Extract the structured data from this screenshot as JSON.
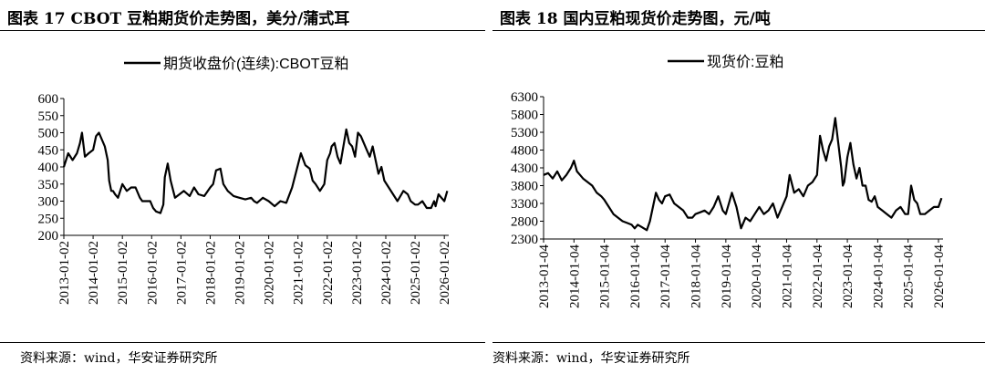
{
  "figures": [
    {
      "title": "图表 17 CBOT 豆粕期货价走势图，美分/蒲式耳",
      "source": "资料来源：wind，华安证券研究所"
    },
    {
      "title": "图表 18 国内豆粕现货价走势图，元/吨",
      "source": "资料来源：wind，华安证券研究所"
    }
  ],
  "chart_data": [
    {
      "type": "line",
      "title": "",
      "xlabel": "",
      "ylabel": "",
      "ylim": [
        200,
        600
      ],
      "yticks": [
        "200",
        "250",
        "300",
        "350",
        "400",
        "450",
        "500",
        "550",
        "600"
      ],
      "xticks": [
        "2013-01-02",
        "2014-01-02",
        "2015-01-02",
        "2016-01-02",
        "2017-01-02",
        "2018-01-02",
        "2019-01-02",
        "2020-01-02",
        "2021-01-02",
        "2022-01-02",
        "2023-01-02",
        "2024-01-02",
        "2025-01-02",
        "2026-01-02"
      ],
      "xrange": [
        2013.0,
        2026.15
      ],
      "legend_position": "top-center",
      "grid": false,
      "series": [
        {
          "name": "期货收盘价(连续):CBOT豆粕",
          "color": "#000000",
          "x": [
            2013.0,
            2013.15,
            2013.3,
            2013.45,
            2013.55,
            2013.62,
            2013.72,
            2013.85,
            2014.0,
            2014.1,
            2014.2,
            2014.3,
            2014.4,
            2014.5,
            2014.55,
            2014.62,
            2014.68,
            2014.75,
            2014.85,
            2015.0,
            2015.15,
            2015.3,
            2015.45,
            2015.6,
            2015.68,
            2015.8,
            2015.95,
            2016.05,
            2016.15,
            2016.3,
            2016.4,
            2016.45,
            2016.55,
            2016.65,
            2016.8,
            2016.95,
            2017.1,
            2017.3,
            2017.45,
            2017.6,
            2017.8,
            2018.0,
            2018.1,
            2018.2,
            2018.35,
            2018.45,
            2018.6,
            2018.8,
            2019.0,
            2019.2,
            2019.4,
            2019.5,
            2019.6,
            2019.8,
            2020.0,
            2020.2,
            2020.4,
            2020.6,
            2020.8,
            2020.95,
            2021.1,
            2021.25,
            2021.4,
            2021.5,
            2021.6,
            2021.75,
            2021.9,
            2022.0,
            2022.1,
            2022.15,
            2022.25,
            2022.35,
            2022.45,
            2022.55,
            2022.65,
            2022.75,
            2022.85,
            2022.95,
            2023.05,
            2023.15,
            2023.25,
            2023.35,
            2023.45,
            2023.55,
            2023.65,
            2023.75,
            2023.85,
            2023.95,
            2024.1,
            2024.25,
            2024.4,
            2024.6,
            2024.75,
            2024.85,
            2025.0,
            2025.1,
            2025.25,
            2025.4,
            2025.55,
            2025.65,
            2025.7,
            2025.8,
            2025.9,
            2026.0,
            2026.1
          ],
          "values": [
            400,
            440,
            420,
            440,
            470,
            500,
            430,
            440,
            450,
            490,
            500,
            480,
            460,
            420,
            360,
            330,
            330,
            320,
            310,
            350,
            330,
            340,
            340,
            310,
            300,
            300,
            300,
            280,
            270,
            265,
            290,
            370,
            410,
            360,
            310,
            320,
            330,
            315,
            340,
            320,
            315,
            340,
            350,
            390,
            395,
            350,
            330,
            315,
            310,
            305,
            310,
            300,
            295,
            310,
            300,
            285,
            300,
            295,
            340,
            390,
            440,
            405,
            395,
            360,
            350,
            330,
            350,
            420,
            440,
            460,
            470,
            430,
            410,
            460,
            510,
            470,
            460,
            430,
            500,
            490,
            470,
            450,
            430,
            460,
            420,
            380,
            400,
            360,
            340,
            320,
            300,
            330,
            320,
            300,
            290,
            290,
            300,
            280,
            280,
            300,
            285,
            320,
            310,
            300,
            330
          ]
        }
      ]
    },
    {
      "type": "line",
      "title": "",
      "xlabel": "",
      "ylabel": "",
      "ylim": [
        2300,
        6300
      ],
      "yticks": [
        "2300",
        "2800",
        "3300",
        "3800",
        "4300",
        "4800",
        "5300",
        "5800",
        "6300"
      ],
      "xticks": [
        "2013-01-04",
        "2014-01-04",
        "2015-01-04",
        "2016-01-04",
        "2017-01-04",
        "2018-01-04",
        "2019-01-04",
        "2020-01-04",
        "2021-01-04",
        "2022-01-04",
        "2023-01-04",
        "2024-01-04",
        "2025-01-04",
        "2026-01-04"
      ],
      "xrange": [
        2013.0,
        2026.15
      ],
      "legend_position": "top-center",
      "grid": false,
      "series": [
        {
          "name": "现货价:豆粕",
          "color": "#000000",
          "x": [
            2013.0,
            2013.15,
            2013.3,
            2013.45,
            2013.6,
            2013.75,
            2013.9,
            2014.0,
            2014.1,
            2014.2,
            2014.3,
            2014.45,
            2014.6,
            2014.75,
            2014.9,
            2015.0,
            2015.15,
            2015.3,
            2015.45,
            2015.6,
            2015.75,
            2015.9,
            2016.0,
            2016.1,
            2016.2,
            2016.3,
            2016.4,
            2016.5,
            2016.6,
            2016.7,
            2016.8,
            2016.9,
            2017.0,
            2017.15,
            2017.3,
            2017.45,
            2017.6,
            2017.75,
            2017.9,
            2018.0,
            2018.15,
            2018.3,
            2018.45,
            2018.6,
            2018.75,
            2018.9,
            2019.0,
            2019.1,
            2019.2,
            2019.35,
            2019.5,
            2019.65,
            2019.8,
            2019.95,
            2020.1,
            2020.25,
            2020.4,
            2020.55,
            2020.7,
            2020.85,
            2021.0,
            2021.1,
            2021.25,
            2021.4,
            2021.55,
            2021.7,
            2021.85,
            2022.0,
            2022.1,
            2022.2,
            2022.3,
            2022.4,
            2022.5,
            2022.6,
            2022.7,
            2022.8,
            2022.85,
            2022.9,
            2023.0,
            2023.1,
            2023.2,
            2023.3,
            2023.4,
            2023.5,
            2023.6,
            2023.7,
            2023.8,
            2023.9,
            2024.0,
            2024.15,
            2024.3,
            2024.45,
            2024.6,
            2024.75,
            2024.9,
            2025.0,
            2025.1,
            2025.2,
            2025.3,
            2025.4,
            2025.55,
            2025.7,
            2025.85,
            2026.0,
            2026.1
          ],
          "values": [
            4100,
            4150,
            4000,
            4200,
            3950,
            4100,
            4300,
            4500,
            4200,
            4100,
            4000,
            3900,
            3800,
            3600,
            3500,
            3400,
            3200,
            3000,
            2900,
            2800,
            2750,
            2700,
            2600,
            2700,
            2650,
            2600,
            2550,
            2800,
            3200,
            3600,
            3400,
            3300,
            3500,
            3550,
            3300,
            3200,
            3100,
            2900,
            2900,
            3000,
            3050,
            3100,
            3000,
            3200,
            3500,
            3100,
            3000,
            3300,
            3600,
            3200,
            2600,
            2900,
            2800,
            3000,
            3200,
            3000,
            3100,
            3300,
            2900,
            3200,
            3500,
            4100,
            3600,
            3700,
            3500,
            3800,
            3900,
            4100,
            5200,
            4800,
            4500,
            4900,
            5100,
            5700,
            5000,
            4300,
            3800,
            3900,
            4600,
            5000,
            4400,
            4000,
            4300,
            3800,
            3800,
            3400,
            3350,
            3500,
            3200,
            3100,
            3000,
            2900,
            3100,
            3200,
            3000,
            3000,
            3800,
            3400,
            3300,
            3000,
            3000,
            3100,
            3200,
            3200,
            3450
          ]
        }
      ]
    }
  ]
}
